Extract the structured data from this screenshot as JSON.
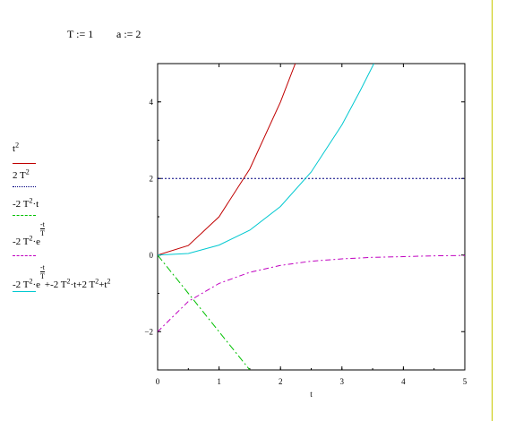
{
  "definitions": [
    {
      "text": "T := 1"
    },
    {
      "text": "a := 2"
    }
  ],
  "legend": [
    {
      "parts": [
        "t",
        "2"
      ],
      "color": "#c00000",
      "dash": "solid"
    },
    {
      "parts": [
        "2 T",
        "2"
      ],
      "color": "#000080",
      "dash": "dotted"
    },
    {
      "parts": [
        "-2 T",
        "2",
        "·t"
      ],
      "color": "#00c000",
      "dash": "dashdot"
    },
    {
      "parts": [
        "-2 T",
        "2",
        "·e",
        "-t",
        "T"
      ],
      "color": "#c000c0",
      "dash": "dashdot2"
    },
    {
      "parts": [
        "-2 T",
        "2",
        "·e",
        "-t",
        "T",
        "+-2 T",
        "2",
        "·t+2 T",
        "2",
        "+t",
        "2"
      ],
      "color": "#00c8d0",
      "dash": "solid"
    }
  ],
  "chart_data": {
    "type": "line",
    "title": "",
    "xlabel": "t",
    "ylabel": "",
    "xlim": [
      0,
      5
    ],
    "ylim": [
      -3,
      5
    ],
    "x_ticks": [
      "0",
      "1",
      "2",
      "3",
      "4",
      "5"
    ],
    "y_ticks": [
      "-2",
      "0",
      "2",
      "4"
    ],
    "grid": false,
    "series": [
      {
        "name": "t^2",
        "color": "#c00000",
        "points": [
          [
            0,
            0
          ],
          [
            0.5,
            0.25
          ],
          [
            1,
            1
          ],
          [
            1.5,
            2.25
          ],
          [
            2,
            4
          ],
          [
            2.24,
            5
          ]
        ]
      },
      {
        "name": "2 T^2",
        "color": "#000080",
        "points": [
          [
            0,
            2
          ],
          [
            5,
            2
          ]
        ]
      },
      {
        "name": "-2 T^2·t",
        "color": "#00c000",
        "points": [
          [
            0,
            0
          ],
          [
            0.5,
            -1
          ],
          [
            1,
            -2
          ],
          [
            1.5,
            -3
          ]
        ]
      },
      {
        "name": "-2 T^2·e^(-t/T)",
        "color": "#c000c0",
        "points": [
          [
            0,
            -2
          ],
          [
            0.5,
            -1.21
          ],
          [
            1,
            -0.74
          ],
          [
            1.5,
            -0.45
          ],
          [
            2,
            -0.27
          ],
          [
            2.5,
            -0.16
          ],
          [
            3,
            -0.1
          ],
          [
            3.5,
            -0.06
          ],
          [
            4,
            -0.04
          ],
          [
            4.5,
            -0.02
          ],
          [
            5,
            -0.01
          ]
        ]
      },
      {
        "name": "-2 T^2·e^(-t/T)+-2 T^2·t+2 T^2+t^2",
        "color": "#00c8d0",
        "points": [
          [
            0,
            0
          ],
          [
            0.5,
            0.04
          ],
          [
            1,
            0.26
          ],
          [
            1.5,
            0.65
          ],
          [
            2,
            1.27
          ],
          [
            2.5,
            2.17
          ],
          [
            3,
            3.4
          ],
          [
            3.3,
            4.3
          ],
          [
            3.52,
            5
          ]
        ]
      }
    ]
  }
}
